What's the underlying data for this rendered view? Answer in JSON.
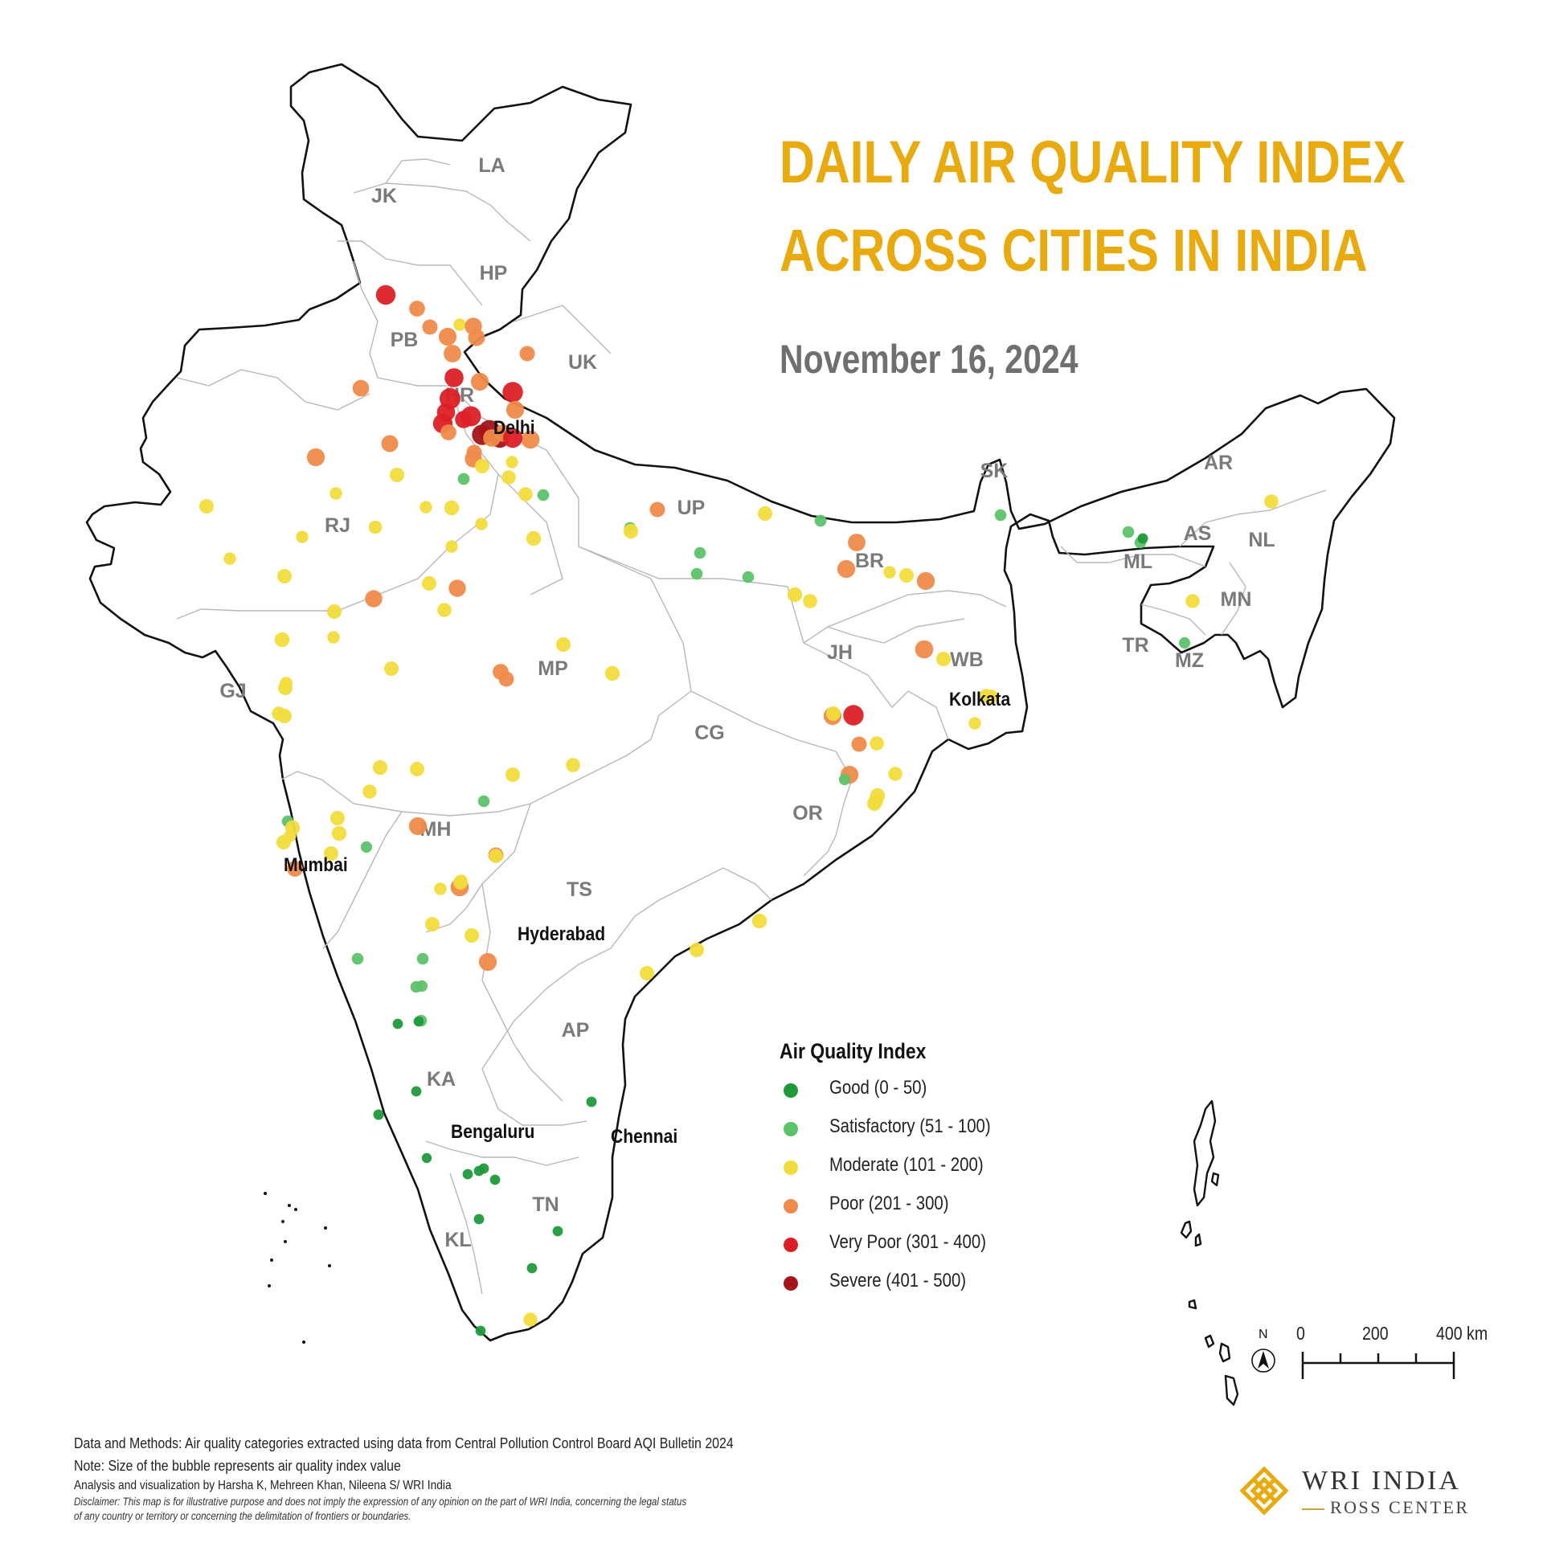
{
  "title": {
    "line1": "DAILY AIR QUALITY INDEX",
    "line2": "ACROSS CITIES IN INDIA"
  },
  "date": "November 16, 2024",
  "colors": {
    "title": "#e8aa0e",
    "good": "#1f9a3b",
    "satisfactory": "#5cc36a",
    "moderate": "#f2dc3c",
    "poor": "#ef8a4a",
    "very_poor": "#dc1f26",
    "severe": "#a41418"
  },
  "legend": {
    "title": "Air Quality Index",
    "items": [
      {
        "key": "good",
        "label": "Good (0 - 50)"
      },
      {
        "key": "satisfactory",
        "label": "Satisfactory (51 - 100)"
      },
      {
        "key": "moderate",
        "label": "Moderate (101 - 200)"
      },
      {
        "key": "poor",
        "label": "Poor (201 - 300)"
      },
      {
        "key": "very_poor",
        "label": "Very Poor (301 - 400)"
      },
      {
        "key": "severe",
        "label": "Severe (401 - 500)"
      }
    ]
  },
  "states": [
    "JK",
    "LA",
    "HP",
    "PB",
    "UK",
    "HR",
    "RJ",
    "UP",
    "SK",
    "AR",
    "AS",
    "NL",
    "ML",
    "MN",
    "BR",
    "TR",
    "MZ",
    "WB",
    "JH",
    "GJ",
    "MP",
    "CG",
    "OR",
    "MH",
    "TS",
    "AP",
    "KA",
    "TN",
    "KL"
  ],
  "cities": [
    "Delhi",
    "Kolkata",
    "Mumbai",
    "Hyderabad",
    "Bengaluru",
    "Chennai"
  ],
  "scale": {
    "north": "N",
    "labels": [
      "0",
      "200",
      "400 km"
    ]
  },
  "notes": [
    "Data and Methods: Air quality categories extracted using data from Central Pollution Control Board AQI Bulletin 2024",
    "Note: Size of the bubble represents air quality index value",
    "Analysis and visualization by Harsha K, Mehreen Khan, Nileena S/ WRI India"
  ],
  "disclaimer": [
    "Disclaimer: This map is for illustrative purpose and does not imply the expression of any opinion on the part of WRI India, concerning the legal status",
    "of any country or territory or concerning the delimitation of frontiers or boundaries."
  ],
  "logo": {
    "line1": "WRI INDIA",
    "line2": "ROSS CENTER"
  },
  "bubbles": [
    {
      "cat": "very_poor",
      "aqi": 330
    },
    {
      "cat": "poor",
      "aqi": 260
    },
    {
      "cat": "poor",
      "aqi": 250
    },
    {
      "cat": "poor",
      "aqi": 240
    },
    {
      "cat": "poor",
      "aqi": 235
    },
    {
      "cat": "moderate",
      "aqi": 150
    },
    {
      "cat": "poor",
      "aqi": 230
    },
    {
      "cat": "poor",
      "aqi": 225
    },
    {
      "cat": "very_poor",
      "aqi": 320
    },
    {
      "cat": "poor",
      "aqi": 240
    },
    {
      "cat": "poor",
      "aqi": 250
    },
    {
      "cat": "very_poor",
      "aqi": 345
    },
    {
      "cat": "very_poor",
      "aqi": 360
    },
    {
      "cat": "very_poor",
      "aqi": 335
    },
    {
      "cat": "very_poor",
      "aqi": 330
    },
    {
      "cat": "very_poor",
      "aqi": 350
    },
    {
      "cat": "poor",
      "aqi": 260
    },
    {
      "cat": "severe",
      "aqi": 420
    },
    {
      "cat": "severe",
      "aqi": 430
    },
    {
      "cat": "severe",
      "aqi": 410
    },
    {
      "cat": "very_poor",
      "aqi": 340
    },
    {
      "cat": "poor",
      "aqi": 240
    },
    {
      "cat": "poor",
      "aqi": 245
    },
    {
      "cat": "poor",
      "aqi": 230
    },
    {
      "cat": "poor",
      "aqi": 235
    },
    {
      "cat": "moderate",
      "aqi": 150
    },
    {
      "cat": "poor",
      "aqi": 250
    },
    {
      "cat": "very_poor",
      "aqi": 330
    },
    {
      "cat": "poor",
      "aqi": 230
    },
    {
      "cat": "moderate",
      "aqi": 140
    },
    {
      "cat": "poor",
      "aqi": 220
    },
    {
      "cat": "poor",
      "aqi": 225
    },
    {
      "cat": "satisfactory",
      "aqi": 90
    },
    {
      "cat": "moderate",
      "aqi": 140
    },
    {
      "cat": "moderate",
      "aqi": 130
    },
    {
      "cat": "moderate",
      "aqi": 130
    },
    {
      "cat": "satisfactory",
      "aqi": 85
    },
    {
      "cat": "poor",
      "aqi": 240
    },
    {
      "cat": "moderate",
      "aqi": 150
    },
    {
      "cat": "moderate",
      "aqi": 150
    },
    {
      "cat": "moderate",
      "aqi": 145
    },
    {
      "cat": "moderate",
      "aqi": 140
    },
    {
      "cat": "moderate",
      "aqi": 150
    },
    {
      "cat": "moderate",
      "aqi": 120
    },
    {
      "cat": "moderate",
      "aqi": 150
    },
    {
      "cat": "moderate",
      "aqi": 145
    },
    {
      "cat": "moderate",
      "aqi": 150
    },
    {
      "cat": "moderate",
      "aqi": 150
    },
    {
      "cat": "moderate",
      "aqi": 140
    },
    {
      "cat": "poor",
      "aqi": 230
    },
    {
      "cat": "moderate",
      "aqi": 140
    },
    {
      "cat": "poor",
      "aqi": 230
    },
    {
      "cat": "moderate",
      "aqi": 135
    },
    {
      "cat": "moderate",
      "aqi": 140
    },
    {
      "cat": "moderate",
      "aqi": 145
    },
    {
      "cat": "moderate",
      "aqi": 150
    },
    {
      "cat": "moderate",
      "aqi": 155
    },
    {
      "cat": "moderate",
      "aqi": 140
    },
    {
      "cat": "moderate",
      "aqi": 140
    },
    {
      "cat": "moderate",
      "aqi": 130
    },
    {
      "cat": "moderate",
      "aqi": 140
    },
    {
      "cat": "poor",
      "aqi": 260
    },
    {
      "cat": "poor",
      "aqi": 250
    },
    {
      "cat": "moderate",
      "aqi": 140
    },
    {
      "cat": "moderate",
      "aqi": 145
    },
    {
      "cat": "satisfactory",
      "aqi": 90
    },
    {
      "cat": "poor",
      "aqi": 250
    },
    {
      "cat": "moderate",
      "aqi": 145
    },
    {
      "cat": "moderate",
      "aqi": 140
    },
    {
      "cat": "satisfactory",
      "aqi": 90
    },
    {
      "cat": "satisfactory",
      "aqi": 85
    },
    {
      "cat": "satisfactory",
      "aqi": 85
    },
    {
      "cat": "satisfactory",
      "aqi": 85
    },
    {
      "cat": "moderate",
      "aqi": 145
    },
    {
      "cat": "moderate",
      "aqi": 135
    },
    {
      "cat": "poor",
      "aqi": 235
    },
    {
      "cat": "poor",
      "aqi": 240
    },
    {
      "cat": "moderate",
      "aqi": 150
    },
    {
      "cat": "moderate",
      "aqi": 140
    },
    {
      "cat": "poor",
      "aqi": 240
    },
    {
      "cat": "poor",
      "aqi": 245
    },
    {
      "cat": "moderate",
      "aqi": 140
    },
    {
      "cat": "moderate",
      "aqi": 130
    },
    {
      "cat": "moderate",
      "aqi": 140
    },
    {
      "cat": "poor",
      "aqi": 240
    },
    {
      "cat": "very_poor",
      "aqi": 340
    },
    {
      "cat": "poor",
      "aqi": 250
    },
    {
      "cat": "moderate",
      "aqi": 150
    },
    {
      "cat": "moderate",
      "aqi": 140
    },
    {
      "cat": "moderate",
      "aqi": 135
    },
    {
      "cat": "moderate",
      "aqi": 130
    },
    {
      "cat": "poor",
      "aqi": 240
    },
    {
      "cat": "satisfactory",
      "aqi": 80
    },
    {
      "cat": "moderate",
      "aqi": 140
    },
    {
      "cat": "moderate",
      "aqi": 145
    },
    {
      "cat": "moderate",
      "aqi": 140
    },
    {
      "cat": "moderate",
      "aqi": 145
    },
    {
      "cat": "moderate",
      "aqi": 140
    },
    {
      "cat": "moderate",
      "aqi": 135
    },
    {
      "cat": "moderate",
      "aqi": 140
    },
    {
      "cat": "moderate",
      "aqi": 130
    },
    {
      "cat": "moderate",
      "aqi": 140
    },
    {
      "cat": "satisfactory",
      "aqi": 85
    },
    {
      "cat": "moderate",
      "aqi": 145
    },
    {
      "cat": "moderate",
      "aqi": 140
    },
    {
      "cat": "satisfactory",
      "aqi": 80
    },
    {
      "cat": "satisfactory",
      "aqi": 85
    },
    {
      "cat": "poor",
      "aqi": 240
    },
    {
      "cat": "moderate",
      "aqi": 140
    },
    {
      "cat": "moderate",
      "aqi": 145
    },
    {
      "cat": "moderate",
      "aqi": 150
    },
    {
      "cat": "poor",
      "aqi": 250
    },
    {
      "cat": "poor",
      "aqi": 245
    },
    {
      "cat": "poor",
      "aqi": 260
    },
    {
      "cat": "moderate",
      "aqi": 140
    },
    {
      "cat": "moderate",
      "aqi": 150
    },
    {
      "cat": "moderate",
      "aqi": 150
    },
    {
      "cat": "moderate",
      "aqi": 130
    },
    {
      "cat": "moderate",
      "aqi": 140
    },
    {
      "cat": "moderate",
      "aqi": 145
    },
    {
      "cat": "moderate",
      "aqi": 140
    },
    {
      "cat": "moderate",
      "aqi": 140
    },
    {
      "cat": "moderate",
      "aqi": 140
    },
    {
      "cat": "poor",
      "aqi": 240
    },
    {
      "cat": "satisfactory",
      "aqi": 85
    },
    {
      "cat": "satisfactory",
      "aqi": 85
    },
    {
      "cat": "satisfactory",
      "aqi": 85
    },
    {
      "cat": "satisfactory",
      "aqi": 85
    },
    {
      "cat": "satisfactory",
      "aqi": 80
    },
    {
      "cat": "good",
      "aqi": 40
    },
    {
      "cat": "good",
      "aqi": 40
    },
    {
      "cat": "good",
      "aqi": 45
    },
    {
      "cat": "good",
      "aqi": 40
    },
    {
      "cat": "good",
      "aqi": 40
    },
    {
      "cat": "good",
      "aqi": 40
    },
    {
      "cat": "good",
      "aqi": 35
    },
    {
      "cat": "good",
      "aqi": 45
    },
    {
      "cat": "good",
      "aqi": 40
    },
    {
      "cat": "good",
      "aqi": 40
    },
    {
      "cat": "good",
      "aqi": 40
    },
    {
      "cat": "good",
      "aqi": 40
    },
    {
      "cat": "good",
      "aqi": 40
    },
    {
      "cat": "good",
      "aqi": 40
    },
    {
      "cat": "moderate",
      "aqi": 130
    },
    {
      "cat": "satisfactory",
      "aqi": 85
    },
    {
      "cat": "satisfactory",
      "aqi": 85
    },
    {
      "cat": "satisfactory",
      "aqi": 85
    },
    {
      "cat": "moderate",
      "aqi": 135
    },
    {
      "cat": "good",
      "aqi": 45
    },
    {
      "cat": "satisfactory",
      "aqi": 80
    },
    {
      "cat": "moderate",
      "aqi": 130
    }
  ]
}
